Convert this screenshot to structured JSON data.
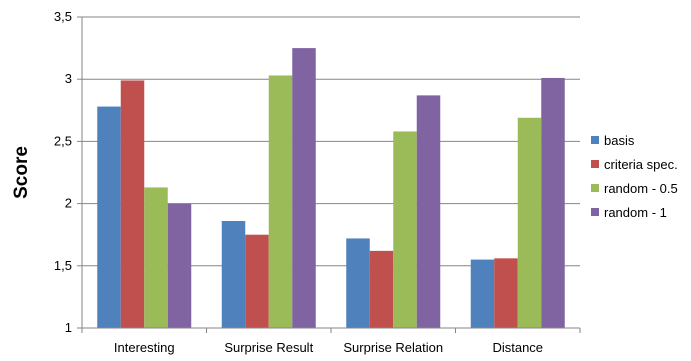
{
  "chart_data": {
    "type": "bar",
    "title": "",
    "xlabel": "",
    "ylabel": "Score",
    "ylim": [
      1,
      3.5
    ],
    "yticks": [
      "1",
      "1,5",
      "2",
      "2,5",
      "3",
      "3,5"
    ],
    "grid": true,
    "legend_position": "right",
    "categories": [
      "Interesting",
      "Surprise Result",
      "Surprise Relation",
      "Distance"
    ],
    "series": [
      {
        "name": "basis",
        "color": "#4F81BD",
        "values": [
          2.78,
          1.86,
          1.72,
          1.55
        ]
      },
      {
        "name": "criteria spec.",
        "color": "#C0504D",
        "values": [
          2.99,
          1.75,
          1.62,
          1.56
        ]
      },
      {
        "name": "random - 0.5",
        "color": "#9BBB59",
        "values": [
          2.13,
          3.03,
          2.58,
          2.69
        ]
      },
      {
        "name": "random - 1",
        "color": "#8064A2",
        "values": [
          2.0,
          3.25,
          2.87,
          3.01
        ]
      }
    ]
  }
}
